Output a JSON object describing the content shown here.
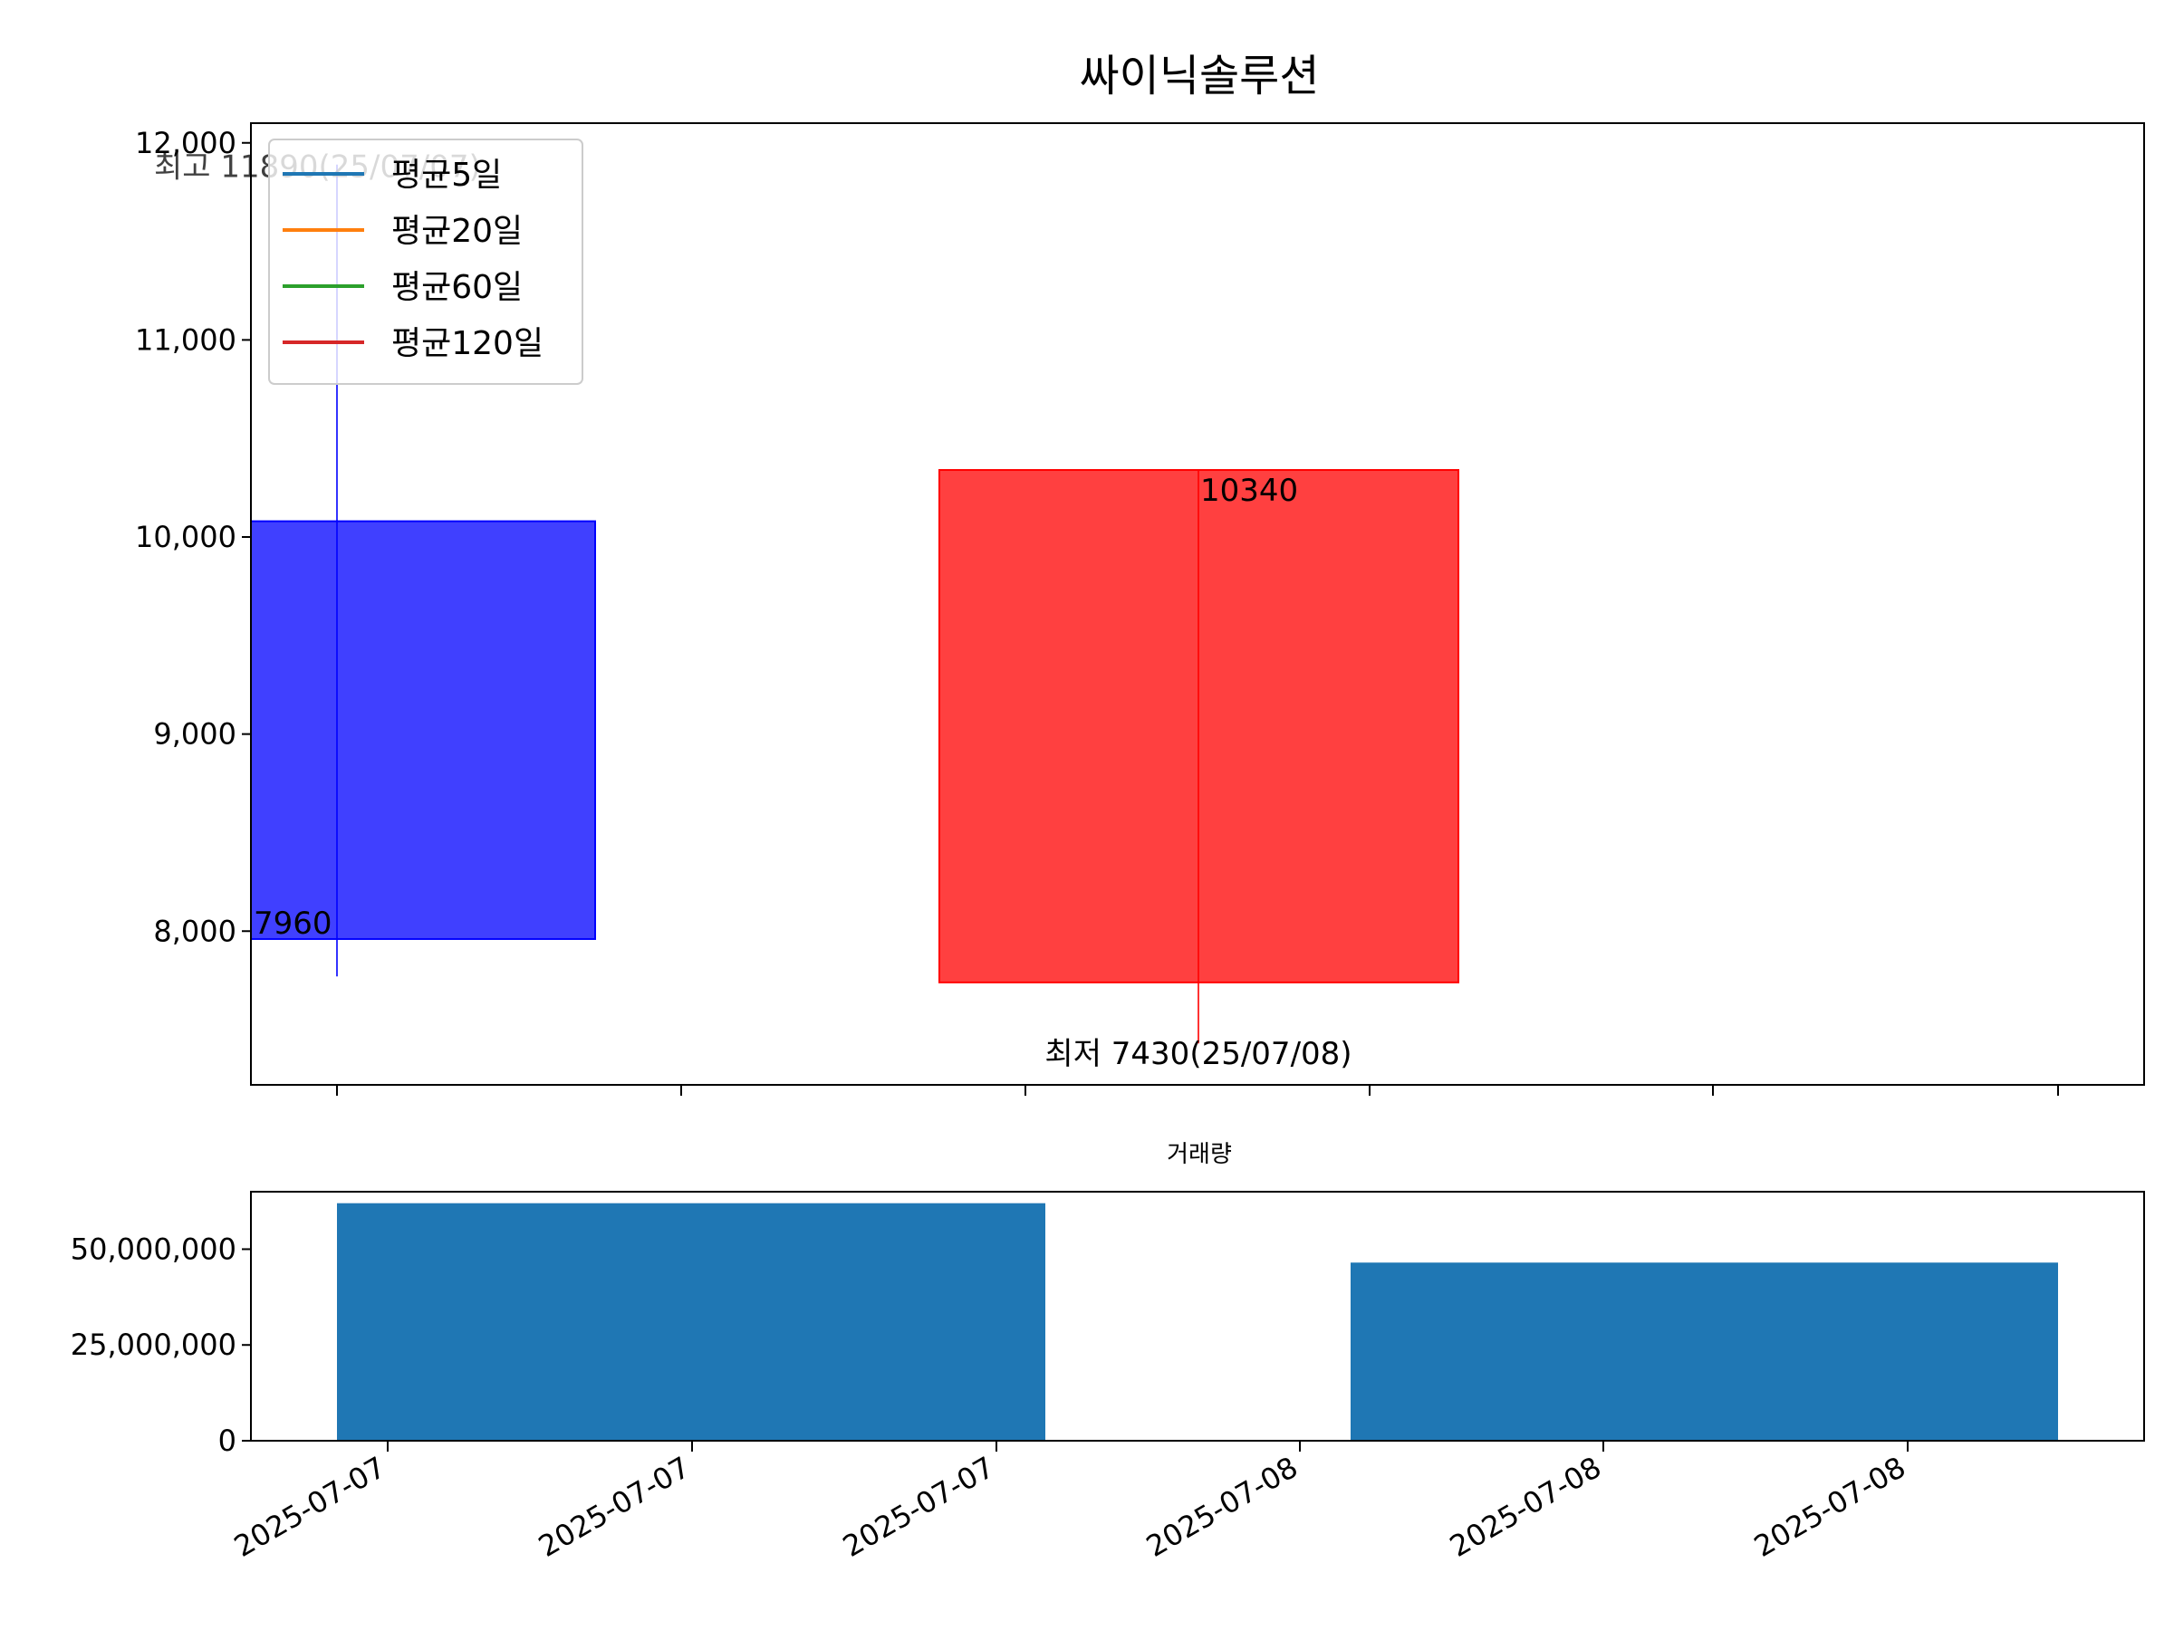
{
  "chart_data": [
    {
      "type": "candlestick",
      "title": "싸이닉솔루션",
      "xlabel": "",
      "ylabel": "",
      "ylim": [
        7220,
        12100
      ],
      "y_ticks": [
        8000,
        9000,
        10000,
        11000,
        12000
      ],
      "y_tick_labels": [
        "8,000",
        "9,000",
        "10,000",
        "11,000",
        "12,000"
      ],
      "grid": false,
      "legend": {
        "position": "top-left",
        "entries": [
          {
            "name": "평균5일",
            "color": "#1f77b4"
          },
          {
            "name": "평균20일",
            "color": "#ff7f0e"
          },
          {
            "name": "평균60일",
            "color": "#2ca02c"
          },
          {
            "name": "평균120일",
            "color": "#d62728"
          }
        ]
      },
      "candles": [
        {
          "date": "2025-07-07",
          "open": 10080,
          "high": 11890,
          "low": 7770,
          "close": 7960,
          "color": "#0000ff"
        },
        {
          "date": "2025-07-08",
          "open": 7740,
          "high": 10340,
          "low": 7430,
          "close": 10340,
          "color": "#ff0000"
        }
      ],
      "candle_labels": [
        {
          "text": "7960",
          "date": "2025-07-07",
          "value": 7960,
          "color": "#000000"
        },
        {
          "text": "10340",
          "date": "2025-07-08",
          "value": 10340,
          "color": "#000000"
        }
      ],
      "annotations": [
        {
          "text": "최고 11890(25/07/07)",
          "date": "2025-07-07",
          "value": 11890,
          "color": "#ff0000"
        },
        {
          "text": "최저 7430(25/07/08)",
          "date": "2025-07-08",
          "value": 7430,
          "color": "#0000ff"
        }
      ]
    },
    {
      "type": "bar",
      "title": "거래량",
      "xlabel": "",
      "ylabel": "",
      "categories": [
        "2025-07-07",
        "2025-07-08"
      ],
      "values": [
        62000000,
        46500000
      ],
      "ylim": [
        0,
        65000000
      ],
      "y_ticks": [
        0,
        25000000,
        50000000
      ],
      "y_tick_labels": [
        "0",
        "25,000,000",
        "50,000,000"
      ],
      "x_tick_labels": [
        "2025-07-07",
        "2025-07-07",
        "2025-07-07",
        "2025-07-08",
        "2025-07-08",
        "2025-07-08"
      ],
      "bar_color": "#1f77b4",
      "grid": false
    }
  ]
}
